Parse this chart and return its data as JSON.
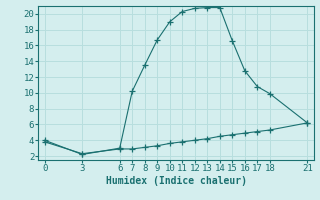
{
  "xlabel": "Humidex (Indice chaleur)",
  "bg_color": "#d4eeee",
  "line_color": "#1a7070",
  "grid_color": "#b8dede",
  "upper_x": [
    0,
    3,
    6,
    7,
    8,
    9,
    10,
    11,
    12,
    13,
    14,
    15,
    16,
    17,
    18,
    21
  ],
  "upper_y": [
    4.0,
    2.2,
    3.0,
    10.2,
    13.5,
    16.7,
    19.0,
    20.3,
    20.7,
    20.8,
    20.8,
    16.6,
    12.8,
    10.8,
    9.9,
    6.2
  ],
  "lower_x": [
    0,
    3,
    6,
    7,
    8,
    9,
    10,
    11,
    12,
    13,
    14,
    15,
    16,
    17,
    18,
    21
  ],
  "lower_y": [
    3.8,
    2.3,
    2.9,
    2.9,
    3.1,
    3.3,
    3.6,
    3.8,
    4.0,
    4.2,
    4.5,
    4.7,
    4.9,
    5.1,
    5.3,
    6.2
  ],
  "xticks": [
    0,
    3,
    6,
    7,
    8,
    9,
    10,
    11,
    12,
    13,
    14,
    15,
    16,
    17,
    18,
    21
  ],
  "yticks": [
    2,
    4,
    6,
    8,
    10,
    12,
    14,
    16,
    18,
    20
  ],
  "xlim": [
    -0.5,
    21.5
  ],
  "ylim": [
    1.5,
    21.0
  ],
  "xlabel_fontsize": 7,
  "tick_fontsize": 6.5
}
